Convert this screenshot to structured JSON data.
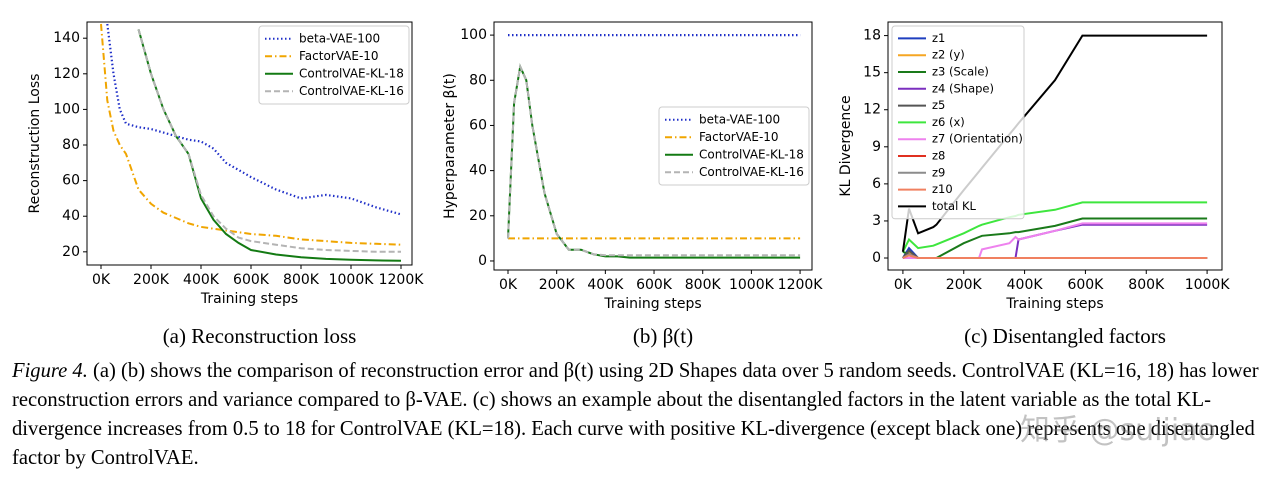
{
  "chart_data": [
    {
      "type": "line",
      "caption": "(a) Reconstruction loss",
      "xlabel": "Training steps",
      "ylabel": "Reconstruction Loss",
      "x": [
        0,
        25000,
        50000,
        75000,
        100000,
        150000,
        200000,
        250000,
        300000,
        350000,
        400000,
        450000,
        500000,
        550000,
        600000,
        700000,
        800000,
        900000,
        1000000,
        1100000,
        1200000
      ],
      "xlim": [
        -56000,
        1244000
      ],
      "ylim": [
        12.6,
        149.1
      ],
      "xticks": [
        {
          "value": 0,
          "label": "0K"
        },
        {
          "value": 200000,
          "label": "200K"
        },
        {
          "value": 400000,
          "label": "400K"
        },
        {
          "value": 600000,
          "label": "600K"
        },
        {
          "value": 800000,
          "label": "800K"
        },
        {
          "value": 1000000,
          "label": "1000K"
        },
        {
          "value": 1200000,
          "label": "1200K"
        }
      ],
      "yticks": [
        20,
        40,
        60,
        80,
        100,
        120,
        140
      ],
      "grid": false,
      "legend": "upper right",
      "series": [
        {
          "name": "beta-VAE-100",
          "color": "#1f2fc8",
          "dash": "dotted",
          "values": [
            null,
            148,
            120,
            100,
            92,
            90,
            89,
            87,
            85,
            83,
            82,
            78,
            70,
            66,
            62,
            55,
            50,
            52,
            50,
            45,
            41
          ]
        },
        {
          "name": "FactorVAE-10",
          "color": "#f0a500",
          "dash": "dashdot",
          "values": [
            148,
            105,
            88,
            80,
            75,
            55,
            47,
            42,
            39,
            36,
            34,
            33,
            32,
            31,
            30,
            29,
            27,
            26,
            25,
            24.5,
            24
          ]
        },
        {
          "name": "ControlVAE-KL-18",
          "color": "#137a13",
          "dash": "solid",
          "values": [
            null,
            null,
            null,
            null,
            null,
            145,
            120,
            100,
            85,
            75,
            50,
            38,
            30,
            25,
            21,
            18.5,
            17,
            16,
            15.5,
            15.2,
            15
          ]
        },
        {
          "name": "ControlVAE-KL-16",
          "color": "#b4b4b4",
          "dash": "dashed",
          "values": [
            null,
            null,
            null,
            null,
            null,
            145,
            120,
            100,
            85,
            75,
            52,
            40,
            33,
            28,
            26,
            24,
            22,
            21,
            20.5,
            20,
            20
          ]
        }
      ]
    },
    {
      "type": "line",
      "caption": "(b) β(t)",
      "xlabel": "Training steps",
      "ylabel": "Hyperparameter β(t)",
      "x": [
        0,
        25000,
        50000,
        75000,
        100000,
        150000,
        200000,
        250000,
        300000,
        350000,
        400000,
        450000,
        500000,
        550000,
        600000,
        700000,
        800000,
        900000,
        1000000,
        1100000,
        1200000
      ],
      "xlim": [
        -57500,
        1249000
      ],
      "ylim": [
        -4,
        105.8
      ],
      "xticks": [
        {
          "value": 0,
          "label": "0K"
        },
        {
          "value": 200000,
          "label": "200K"
        },
        {
          "value": 400000,
          "label": "400K"
        },
        {
          "value": 600000,
          "label": "600K"
        },
        {
          "value": 800000,
          "label": "800K"
        },
        {
          "value": 1000000,
          "label": "1000K"
        },
        {
          "value": 1200000,
          "label": "1200K"
        }
      ],
      "yticks": [
        0,
        20,
        40,
        60,
        80,
        100
      ],
      "grid": false,
      "legend": "center right",
      "series": [
        {
          "name": "beta-VAE-100",
          "color": "#1f2fc8",
          "dash": "dotted",
          "values": [
            100,
            100,
            100,
            100,
            100,
            100,
            100,
            100,
            100,
            100,
            100,
            100,
            100,
            100,
            100,
            100,
            100,
            100,
            100,
            100,
            100
          ]
        },
        {
          "name": "FactorVAE-10",
          "color": "#f0a500",
          "dash": "dashdot",
          "values": [
            10,
            10,
            10,
            10,
            10,
            10,
            10,
            10,
            10,
            10,
            10,
            10,
            10,
            10,
            10,
            10,
            10,
            10,
            10,
            10,
            10
          ]
        },
        {
          "name": "ControlVAE-KL-18",
          "color": "#137a13",
          "dash": "solid",
          "values": [
            10,
            70,
            86,
            80,
            60,
            30,
            12,
            5,
            5,
            3,
            2,
            2,
            1.5,
            1.5,
            1.5,
            1.5,
            1.5,
            1.5,
            1.5,
            1.5,
            1.5
          ]
        },
        {
          "name": "ControlVAE-KL-16",
          "color": "#b4b4b4",
          "dash": "dashed",
          "values": [
            10,
            70,
            86,
            80,
            60,
            30,
            12,
            5,
            5,
            3,
            2.5,
            2.5,
            2.5,
            2.5,
            2.5,
            2.5,
            2.5,
            2.5,
            2.5,
            2.5,
            2.5
          ]
        }
      ]
    },
    {
      "type": "line",
      "caption": "(c) Disentangled factors",
      "xlabel": "Training steps",
      "ylabel": "KL Divergence",
      "x": [
        0,
        20000,
        50000,
        100000,
        110000,
        200000,
        250000,
        260000,
        350000,
        370000,
        380000,
        500000,
        590000,
        700000,
        1000000
      ],
      "xlim": [
        -49000,
        1049000
      ],
      "ylim": [
        -0.97,
        19.1
      ],
      "xticks": [
        {
          "value": 0,
          "label": "0K"
        },
        {
          "value": 200000,
          "label": "200K"
        },
        {
          "value": 400000,
          "label": "400K"
        },
        {
          "value": 600000,
          "label": "600K"
        },
        {
          "value": 800000,
          "label": "800K"
        },
        {
          "value": 1000000,
          "label": "1000K"
        }
      ],
      "yticks": [
        0,
        3,
        6,
        9,
        12,
        15,
        18
      ],
      "grid": false,
      "legend": "upper left",
      "series": [
        {
          "name": "z1",
          "color": "#1f3fbf",
          "dash": "solid",
          "values": [
            0,
            0.8,
            0,
            0,
            0,
            0,
            0,
            0,
            0,
            0,
            0,
            0,
            0,
            0,
            0
          ]
        },
        {
          "name": "z2 (y)",
          "color": "#f5a623",
          "dash": "solid",
          "values": [
            0,
            0.5,
            0,
            0,
            0,
            0,
            0,
            0,
            0,
            0,
            0,
            0,
            0,
            0,
            0
          ]
        },
        {
          "name": "z3 (Scale)",
          "color": "#1a7a1a",
          "dash": "solid",
          "values": [
            0.5,
            0.3,
            0,
            0,
            0,
            1.2,
            1.7,
            1.8,
            2,
            2.1,
            2.1,
            2.6,
            3.2,
            3.2,
            3.2
          ]
        },
        {
          "name": "z4 (Shape)",
          "color": "#7b2fbf",
          "dash": "solid",
          "values": [
            0,
            0,
            0,
            0,
            0,
            0,
            0,
            0,
            0,
            0,
            1.5,
            2.2,
            2.7,
            2.7,
            2.7
          ]
        },
        {
          "name": "z5",
          "color": "#555555",
          "dash": "solid",
          "values": [
            0,
            0.6,
            0,
            0,
            0,
            0,
            0,
            0,
            0,
            0,
            0,
            0,
            0,
            0,
            0
          ]
        },
        {
          "name": "z6 (x)",
          "color": "#3ee63e",
          "dash": "solid",
          "values": [
            0.5,
            1.5,
            0.8,
            1,
            1.1,
            2,
            2.6,
            2.7,
            3.3,
            3.4,
            3.5,
            3.9,
            4.5,
            4.5,
            4.5
          ]
        },
        {
          "name": "z7 (Orientation)",
          "color": "#ee82ee",
          "dash": "solid",
          "values": [
            0,
            0,
            0,
            0,
            0,
            0,
            0,
            0.7,
            1.2,
            1.7,
            1.5,
            2.2,
            2.8,
            2.8,
            2.8
          ]
        },
        {
          "name": "z8",
          "color": "#e03020",
          "dash": "solid",
          "values": [
            0,
            0.3,
            0,
            0,
            0,
            0,
            0,
            0,
            0,
            0,
            0,
            0,
            0,
            0,
            0
          ]
        },
        {
          "name": "z9",
          "color": "#8c8c8c",
          "dash": "solid",
          "values": [
            0,
            0.3,
            0,
            0,
            0,
            0,
            0,
            0,
            0,
            0,
            0,
            0,
            0,
            0,
            0
          ]
        },
        {
          "name": "z10",
          "color": "#f08060",
          "dash": "solid",
          "values": [
            0,
            0.2,
            0,
            0,
            0,
            0,
            0,
            0,
            0,
            0,
            0,
            0,
            0,
            0,
            0
          ]
        },
        {
          "name": "total KL",
          "color": "#000000",
          "dash": "solid",
          "values": [
            0.5,
            4,
            2,
            2.5,
            2.7,
            5.5,
            7,
            7.3,
            10,
            10.6,
            10.9,
            14.4,
            18,
            18,
            18
          ]
        }
      ]
    }
  ],
  "figure_label": "Figure 4.",
  "figure_caption": "(a) (b) shows the comparison of reconstruction error and β(t) using 2D Shapes data over 5 random seeds. ControlVAE (KL=16, 18) has lower reconstruction errors and variance compared to β-VAE. (c) shows an example about the disentangled factors in the latent variable as the total KL-divergence increases from 0.5 to 18 for ControlVAE (KL=18). Each curve with positive KL-divergence (except black one) represents one disentangled factor by ControlVAE.",
  "watermark": "知乎 @suijiao"
}
